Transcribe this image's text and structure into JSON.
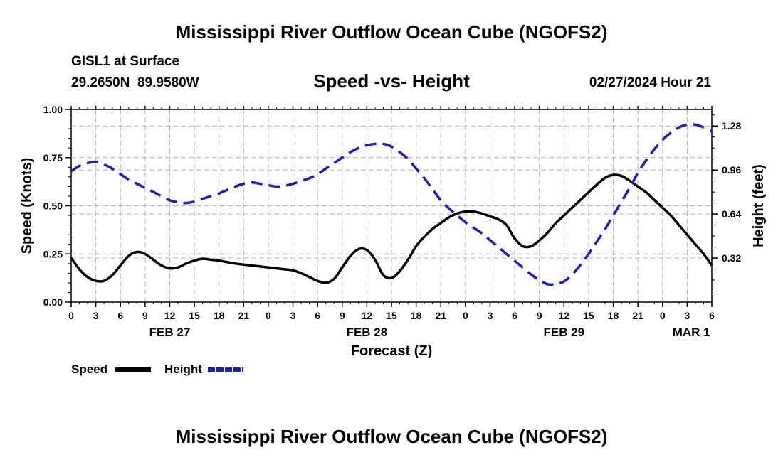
{
  "page": {
    "title": "Mississippi River Outflow Ocean Cube (NGOFS2)",
    "title_repeat": "Mississippi River Outflow Ocean Cube (NGOFS2)",
    "station": "GISL1 at Surface",
    "coords": "29.2650N  89.9580W",
    "datetime": "02/27/2024 Hour 21"
  },
  "chart_data": {
    "type": "line",
    "title": "Speed -vs- Height",
    "xlabel": "Forecast (Z)",
    "ylabel": "Speed (Knots)",
    "y2label": "Height (feet)",
    "x_unit": "forecast hours from 02/27 00Z",
    "xlim": [
      0,
      78
    ],
    "ylim": [
      0,
      1.0
    ],
    "y2lim": [
      0.0,
      1.4
    ],
    "x_ticks": [
      0,
      3,
      6,
      9,
      12,
      15,
      18,
      21,
      24,
      27,
      30,
      33,
      36,
      39,
      42,
      45,
      48,
      51,
      54,
      57,
      60,
      63,
      66,
      69,
      72,
      75,
      78
    ],
    "x_tick_labels": [
      "0",
      "3",
      "6",
      "9",
      "12",
      "15",
      "18",
      "21",
      "0",
      "3",
      "6",
      "9",
      "12",
      "15",
      "18",
      "21",
      "0",
      "3",
      "6",
      "9",
      "12",
      "15",
      "18",
      "21",
      "0",
      "3",
      "6"
    ],
    "date_labels": [
      {
        "x": 12,
        "label": "FEB 27"
      },
      {
        "x": 36,
        "label": "FEB 28"
      },
      {
        "x": 60,
        "label": "FEB 29"
      },
      {
        "x": 75.5,
        "label": "MAR 1"
      }
    ],
    "y_ticks": [
      0.0,
      0.25,
      0.5,
      0.75,
      1.0
    ],
    "y_tick_labels": [
      "0.00",
      "0.25",
      "0.50",
      "0.75",
      "1.00"
    ],
    "y2_ticks": [
      0.32,
      0.64,
      0.96,
      1.28
    ],
    "y2_tick_labels": [
      "0.32",
      "0.64",
      "0.96",
      "1.28"
    ],
    "grid": true,
    "series": [
      {
        "name": "Speed",
        "axis": "left",
        "color": "#000000",
        "dash": "solid",
        "points": [
          [
            0,
            0.23
          ],
          [
            1,
            0.17
          ],
          [
            2,
            0.13
          ],
          [
            3,
            0.11
          ],
          [
            4,
            0.11
          ],
          [
            5,
            0.14
          ],
          [
            6,
            0.19
          ],
          [
            7,
            0.24
          ],
          [
            8,
            0.26
          ],
          [
            9,
            0.25
          ],
          [
            10,
            0.22
          ],
          [
            11,
            0.19
          ],
          [
            12,
            0.175
          ],
          [
            13,
            0.18
          ],
          [
            14,
            0.2
          ],
          [
            15,
            0.215
          ],
          [
            16,
            0.225
          ],
          [
            17,
            0.22
          ],
          [
            18,
            0.215
          ],
          [
            20,
            0.2
          ],
          [
            22,
            0.19
          ],
          [
            24,
            0.18
          ],
          [
            26,
            0.17
          ],
          [
            27,
            0.165
          ],
          [
            28,
            0.15
          ],
          [
            29,
            0.13
          ],
          [
            30,
            0.11
          ],
          [
            31,
            0.1
          ],
          [
            32,
            0.12
          ],
          [
            33,
            0.18
          ],
          [
            34,
            0.24
          ],
          [
            35,
            0.275
          ],
          [
            36,
            0.27
          ],
          [
            37,
            0.22
          ],
          [
            38,
            0.14
          ],
          [
            39,
            0.125
          ],
          [
            40,
            0.16
          ],
          [
            41,
            0.22
          ],
          [
            42,
            0.29
          ],
          [
            43,
            0.34
          ],
          [
            44,
            0.38
          ],
          [
            45,
            0.41
          ],
          [
            46,
            0.44
          ],
          [
            47,
            0.46
          ],
          [
            48,
            0.47
          ],
          [
            49,
            0.47
          ],
          [
            50,
            0.46
          ],
          [
            51,
            0.445
          ],
          [
            52,
            0.43
          ],
          [
            53,
            0.4
          ],
          [
            54,
            0.33
          ],
          [
            55,
            0.29
          ],
          [
            56,
            0.29
          ],
          [
            57,
            0.32
          ],
          [
            58,
            0.36
          ],
          [
            59,
            0.41
          ],
          [
            60,
            0.45
          ],
          [
            61,
            0.49
          ],
          [
            62,
            0.53
          ],
          [
            63,
            0.57
          ],
          [
            64,
            0.61
          ],
          [
            65,
            0.645
          ],
          [
            66,
            0.66
          ],
          [
            67,
            0.655
          ],
          [
            68,
            0.63
          ],
          [
            69,
            0.6
          ],
          [
            70,
            0.57
          ],
          [
            71,
            0.53
          ],
          [
            72,
            0.49
          ],
          [
            73,
            0.45
          ],
          [
            74,
            0.4
          ],
          [
            75,
            0.35
          ],
          [
            76,
            0.3
          ],
          [
            77,
            0.25
          ],
          [
            78,
            0.19
          ]
        ]
      },
      {
        "name": "Height",
        "axis": "right",
        "color": "#1c1cc8",
        "dash": "dashed",
        "points": [
          [
            0,
            0.95
          ],
          [
            1,
            0.99
          ],
          [
            2,
            1.01
          ],
          [
            3,
            1.02
          ],
          [
            4,
            1.0
          ],
          [
            5,
            0.97
          ],
          [
            6,
            0.93
          ],
          [
            7,
            0.89
          ],
          [
            8,
            0.86
          ],
          [
            9,
            0.83
          ],
          [
            10,
            0.8
          ],
          [
            11,
            0.77
          ],
          [
            12,
            0.74
          ],
          [
            13,
            0.725
          ],
          [
            14,
            0.72
          ],
          [
            15,
            0.73
          ],
          [
            16,
            0.75
          ],
          [
            17,
            0.77
          ],
          [
            18,
            0.79
          ],
          [
            19,
            0.815
          ],
          [
            20,
            0.84
          ],
          [
            21,
            0.86
          ],
          [
            22,
            0.87
          ],
          [
            23,
            0.86
          ],
          [
            24,
            0.85
          ],
          [
            25,
            0.84
          ],
          [
            26,
            0.845
          ],
          [
            27,
            0.86
          ],
          [
            28,
            0.88
          ],
          [
            29,
            0.9
          ],
          [
            30,
            0.93
          ],
          [
            31,
            0.97
          ],
          [
            32,
            1.01
          ],
          [
            33,
            1.05
          ],
          [
            34,
            1.09
          ],
          [
            35,
            1.12
          ],
          [
            36,
            1.14
          ],
          [
            37,
            1.15
          ],
          [
            38,
            1.15
          ],
          [
            39,
            1.13
          ],
          [
            40,
            1.09
          ],
          [
            41,
            1.04
          ],
          [
            42,
            0.97
          ],
          [
            43,
            0.9
          ],
          [
            44,
            0.82
          ],
          [
            45,
            0.74
          ],
          [
            46,
            0.68
          ],
          [
            47,
            0.63
          ],
          [
            48,
            0.58
          ],
          [
            49,
            0.54
          ],
          [
            50,
            0.5
          ],
          [
            51,
            0.45
          ],
          [
            52,
            0.4
          ],
          [
            53,
            0.35
          ],
          [
            54,
            0.3
          ],
          [
            55,
            0.25
          ],
          [
            56,
            0.2
          ],
          [
            57,
            0.16
          ],
          [
            58,
            0.13
          ],
          [
            59,
            0.13
          ],
          [
            60,
            0.15
          ],
          [
            61,
            0.2
          ],
          [
            62,
            0.27
          ],
          [
            63,
            0.35
          ],
          [
            64,
            0.44
          ],
          [
            65,
            0.53
          ],
          [
            66,
            0.63
          ],
          [
            67,
            0.73
          ],
          [
            68,
            0.83
          ],
          [
            69,
            0.94
          ],
          [
            70,
            1.03
          ],
          [
            71,
            1.11
          ],
          [
            72,
            1.18
          ],
          [
            73,
            1.23
          ],
          [
            74,
            1.27
          ],
          [
            75,
            1.29
          ],
          [
            76,
            1.29
          ],
          [
            77,
            1.27
          ],
          [
            78,
            1.24
          ]
        ]
      }
    ],
    "legend": [
      {
        "label": "Speed",
        "color": "#000000",
        "dash": "solid"
      },
      {
        "label": "Height",
        "color": "#1c1cc8",
        "dash": "dashed"
      }
    ]
  }
}
